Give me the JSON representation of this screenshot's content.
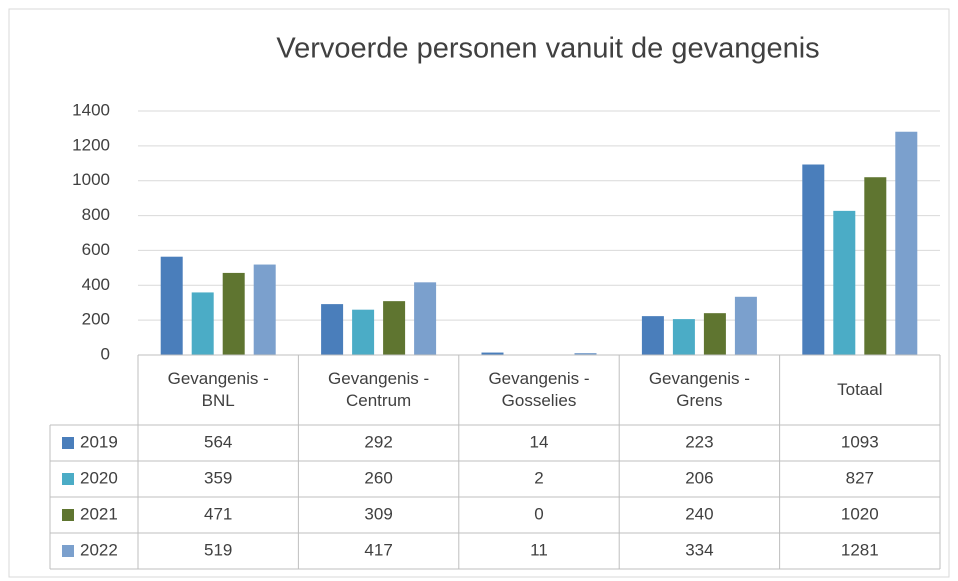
{
  "chart_data": {
    "type": "bar",
    "title": "Vervoerde personen vanuit de gevangenis",
    "categories": [
      "Gevangenis - BNL",
      "Gevangenis - Centrum",
      "Gevangenis - Gosselies",
      "Gevangenis - Grens",
      "Totaal"
    ],
    "series": [
      {
        "name": "2019",
        "color": "#4a7ebb",
        "values": [
          564,
          292,
          14,
          223,
          1093
        ]
      },
      {
        "name": "2020",
        "color": "#4bacc6",
        "values": [
          359,
          260,
          2,
          206,
          827
        ]
      },
      {
        "name": "2021",
        "color": "#5f7530",
        "values": [
          471,
          309,
          0,
          240,
          1020
        ]
      },
      {
        "name": "2022",
        "color": "#7ba0cd",
        "values": [
          519,
          417,
          11,
          334,
          1281
        ]
      }
    ],
    "ylim": [
      0,
      1400
    ],
    "yticks": [
      0,
      200,
      400,
      600,
      800,
      1000,
      1200,
      1400
    ],
    "grid": true,
    "data_table": true
  }
}
